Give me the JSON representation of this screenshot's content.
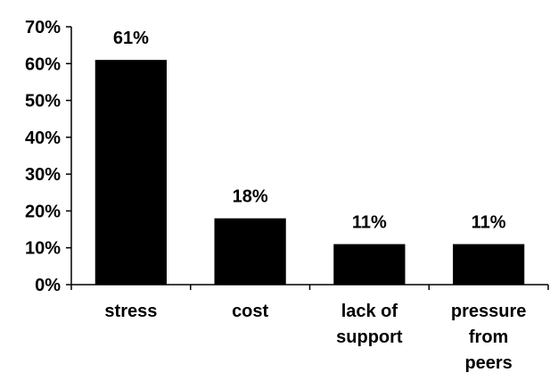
{
  "chart_data": {
    "type": "bar",
    "categories": [
      [
        "stress"
      ],
      [
        "cost"
      ],
      [
        "lack of",
        "support"
      ],
      [
        "pressure",
        "from",
        "peers"
      ]
    ],
    "values": [
      61,
      18,
      11,
      11
    ],
    "data_labels": [
      "61%",
      "18%",
      "11%",
      "11%"
    ],
    "y_ticks": [
      0,
      10,
      20,
      30,
      40,
      50,
      60,
      70
    ],
    "y_tick_labels": [
      "0%",
      "10%",
      "20%",
      "30%",
      "40%",
      "50%",
      "60%",
      "70%"
    ],
    "ylim": [
      0,
      70
    ],
    "grid": false,
    "legend": "none",
    "bar_color": "#000000",
    "title": "",
    "xlabel": "",
    "ylabel": ""
  }
}
